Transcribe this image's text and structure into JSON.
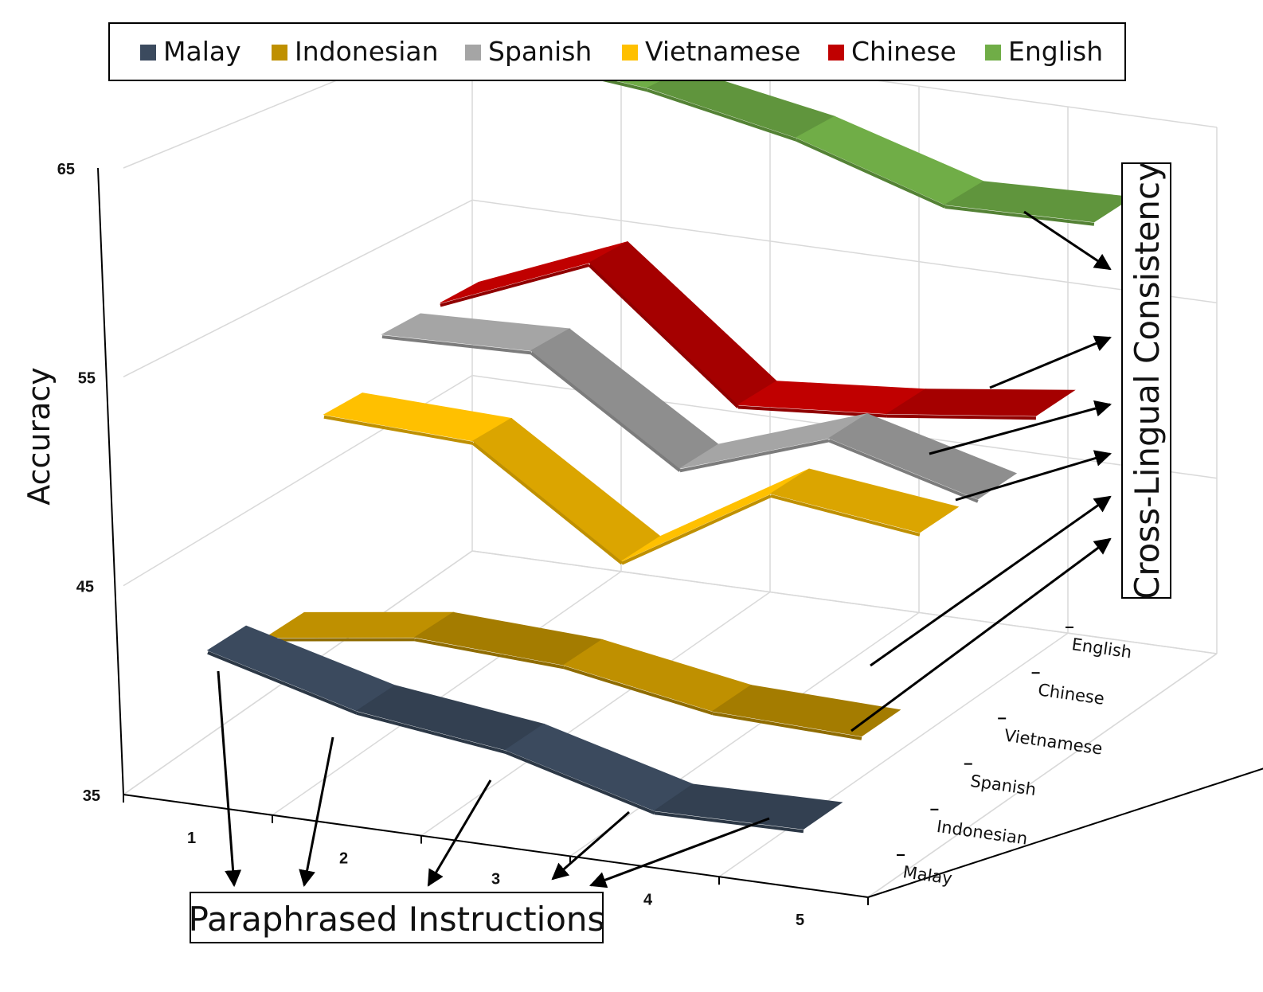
{
  "chart_data": {
    "type": "line",
    "subtype": "3d-ribbon",
    "title": "",
    "ylabel": "Accuracy",
    "xlabel": "Paraphrased Instructions",
    "zlabel": "Cross-Lingual Consistency",
    "x": [
      1,
      2,
      3,
      4,
      5
    ],
    "x_tick_labels": [
      "1",
      "2",
      "3",
      "4",
      "5"
    ],
    "ylim": [
      35,
      65
    ],
    "y_ticks": [
      35,
      45,
      55,
      65
    ],
    "y_tick_labels": [
      "35",
      "45",
      "55",
      "65"
    ],
    "legend_position": "top",
    "grid": true,
    "series": [
      {
        "name": "Malay",
        "color": "#3b4a5e",
        "values": [
          42.2,
          40.4,
          39.6,
          37.6,
          37.8
        ]
      },
      {
        "name": "Indonesian",
        "color": "#bf9000",
        "values": [
          41.0,
          42.2,
          42.0,
          40.8,
          40.7
        ]
      },
      {
        "name": "Vietnamese",
        "color": "#ffc000",
        "values": [
          50.5,
          50.5,
          45.5,
          50.5,
          49.8
        ]
      },
      {
        "name": "Spanish",
        "color": "#a5a5a5",
        "values": [
          53.0,
          53.5,
          48.5,
          51.5,
          49.5
        ]
      },
      {
        "name": "Chinese",
        "color": "#c00000",
        "values": [
          53.0,
          56.5,
          50.0,
          50.8,
          52.0
        ]
      },
      {
        "name": "English",
        "color": "#70ad47",
        "values": [
          65.2,
          64.5,
          63.0,
          60.5,
          60.8
        ]
      }
    ],
    "z_categories": [
      "Malay",
      "Indonesian",
      "Spanish",
      "Vietnamese",
      "Chinese",
      "English"
    ],
    "legend_order": [
      "Malay",
      "Indonesian",
      "Spanish",
      "Vietnamese",
      "Chinese",
      "English"
    ]
  }
}
